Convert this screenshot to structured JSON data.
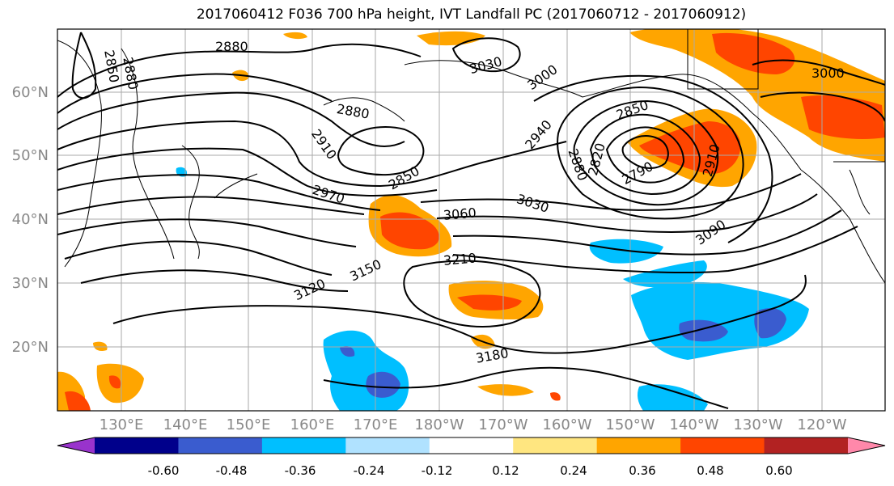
{
  "title": "2017060412 F036 700 hPa height, IVT Landfall PC (2017060712 - 2017060912)",
  "lat_labels": [
    "60°N",
    "50°N",
    "40°N",
    "30°N",
    "20°N"
  ],
  "lon_labels": [
    "130°E",
    "140°E",
    "150°E",
    "160°E",
    "170°E",
    "180°W",
    "170°W",
    "160°W",
    "150°W",
    "140°W",
    "130°W",
    "120°W"
  ],
  "contour_labels": [
    {
      "text": "2850"
    },
    {
      "text": "2880"
    },
    {
      "text": "2880"
    },
    {
      "text": "2880"
    },
    {
      "text": "2910"
    },
    {
      "text": "2850"
    },
    {
      "text": "2970"
    },
    {
      "text": "3030"
    },
    {
      "text": "3000"
    },
    {
      "text": "3060"
    },
    {
      "text": "3030"
    },
    {
      "text": "2940"
    },
    {
      "text": "2850"
    },
    {
      "text": "2880"
    },
    {
      "text": "2820"
    },
    {
      "text": "2790"
    },
    {
      "text": "2910"
    },
    {
      "text": "3000"
    },
    {
      "text": "3090"
    },
    {
      "text": "3120"
    },
    {
      "text": "3150"
    },
    {
      "text": "3210"
    },
    {
      "text": "3180"
    }
  ],
  "colorbar": {
    "colors": [
      "#9933cc",
      "#00008b",
      "#3a5ccf",
      "#00bfff",
      "#b0e2ff",
      "#ffffff",
      "#ffe680",
      "#ffa500",
      "#ff4500",
      "#b22222",
      "#ff88aa"
    ],
    "tick_labels": [
      "-0.60",
      "-0.48",
      "-0.36",
      "-0.24",
      "-0.12",
      "0.12",
      "0.24",
      "0.36",
      "0.48",
      "0.60"
    ]
  }
}
